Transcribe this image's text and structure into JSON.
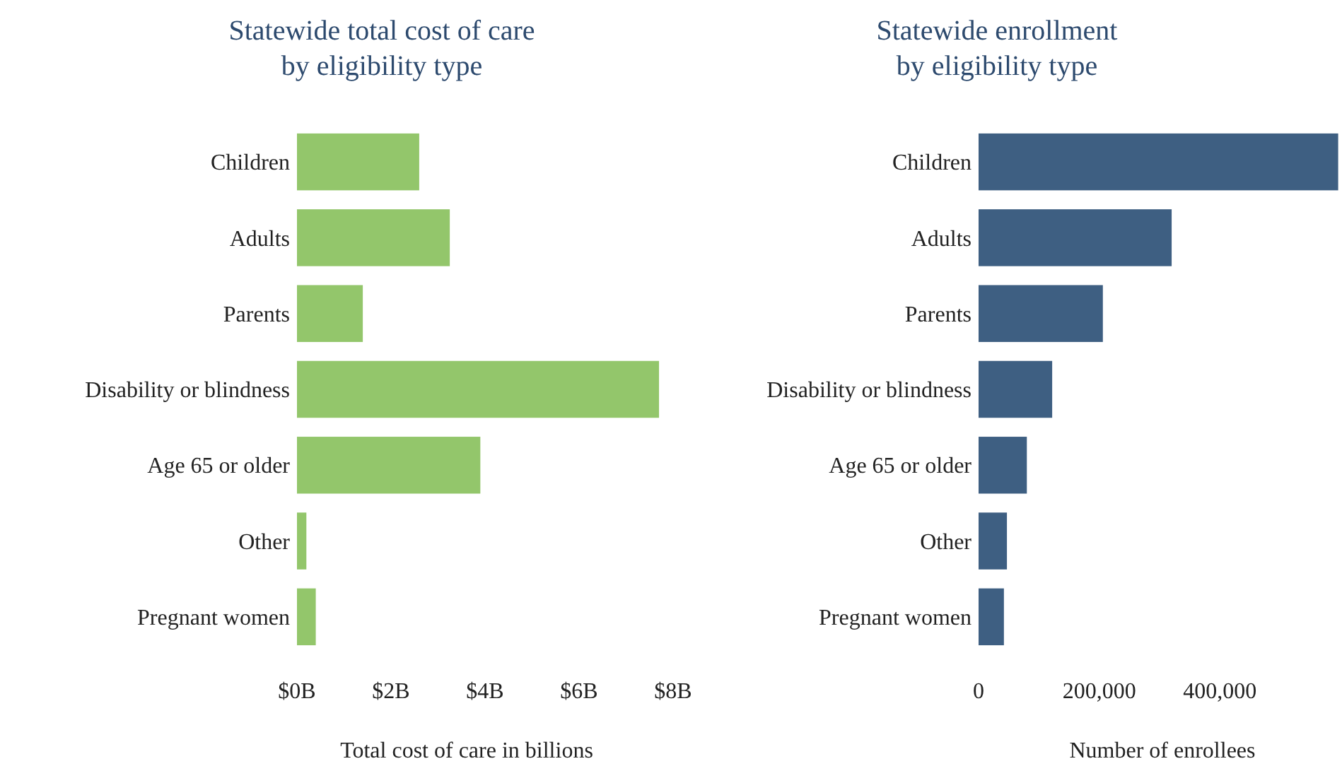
{
  "chart_data": [
    {
      "type": "bar",
      "orientation": "horizontal",
      "title": "Statewide total cost of care\nby eligibility type",
      "xlabel": "Total cost of care in billions",
      "categories": [
        "Children",
        "Adults",
        "Parents",
        "Disability or blindness",
        "Age 65 or older",
        "Other",
        "Pregnant women"
      ],
      "values": [
        2.6,
        3.25,
        1.4,
        7.7,
        3.9,
        0.2,
        0.4
      ],
      "color": "#93c66b",
      "xlim": [
        0,
        8
      ],
      "xticks": [
        {
          "value": 0,
          "label": "$0B"
        },
        {
          "value": 2,
          "label": "$2B"
        },
        {
          "value": 4,
          "label": "$4B"
        },
        {
          "value": 6,
          "label": "$6B"
        },
        {
          "value": 8,
          "label": "$8B"
        }
      ],
      "grid": false
    },
    {
      "type": "bar",
      "orientation": "horizontal",
      "title": "Statewide enrollment\nby eligibility type",
      "xlabel": "Number of enrollees",
      "categories": [
        "Children",
        "Adults",
        "Parents",
        "Disability or blindness",
        "Age 65 or older",
        "Other",
        "Pregnant women"
      ],
      "values": [
        596000,
        320000,
        206000,
        122000,
        80000,
        47000,
        42000
      ],
      "color": "#3e5f82",
      "xlim": [
        0,
        600000
      ],
      "xticks": [
        0,
        {
          "value": 200000,
          "label": "200,000"
        },
        {
          "value": 400000,
          "label": "400,000"
        }
      ],
      "grid": false
    }
  ]
}
